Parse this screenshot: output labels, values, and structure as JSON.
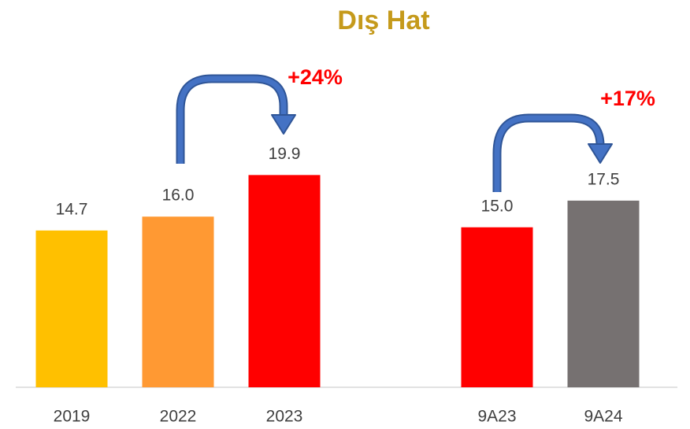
{
  "chart_data": {
    "type": "bar",
    "title": "Dış Hat",
    "categories": [
      "2019",
      "2022",
      "2023",
      null,
      "9A23",
      "9A24"
    ],
    "values": [
      14.7,
      16.0,
      19.9,
      null,
      15.0,
      17.5
    ],
    "value_labels": [
      "14.7",
      "16.0",
      "19.9",
      null,
      "15.0",
      "17.5"
    ],
    "colors": [
      "#FFC000",
      "#FF9933",
      "#FF0000",
      null,
      "#FF0000",
      "#767171"
    ],
    "ylim": [
      0,
      25
    ],
    "annotations": [
      "+24%",
      "+17%"
    ]
  }
}
